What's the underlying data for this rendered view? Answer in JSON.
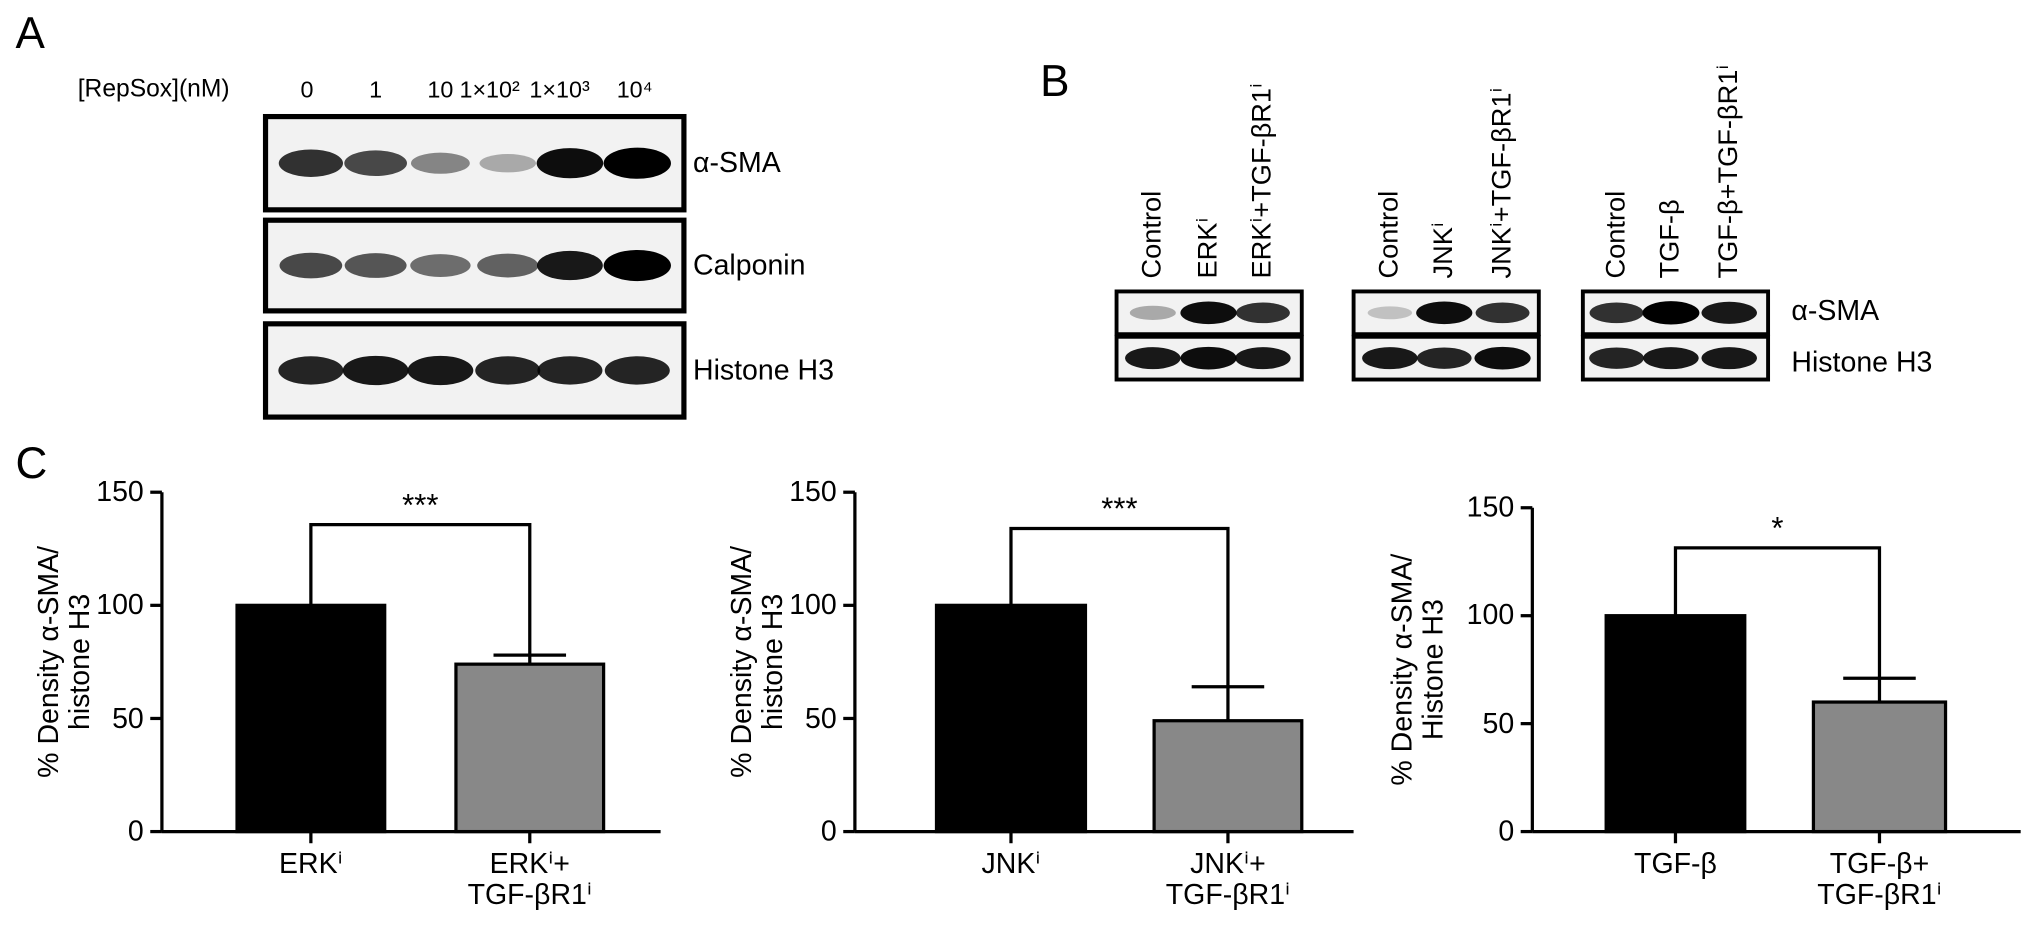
{
  "panels": {
    "a": "A",
    "b": "B",
    "c": "C"
  },
  "blot_a": {
    "header": "[RepSox](nM)",
    "lanes": [
      "0",
      "1",
      "10",
      "1×10²",
      "1×10³",
      "10⁴"
    ],
    "rows": [
      "α-SMA",
      "Calponin",
      "Histone H3"
    ]
  },
  "blot_b": {
    "groups": [
      {
        "lanes": [
          "Control",
          "ERKⁱ",
          "ERKⁱ+TGF-βR1ⁱ"
        ]
      },
      {
        "lanes": [
          "Control",
          "JNKⁱ",
          "JNKⁱ+TGF-βR1ⁱ"
        ]
      },
      {
        "lanes": [
          "Control",
          "TGF-β",
          "TGF-β+TGF-βR1ⁱ"
        ]
      }
    ],
    "rows": [
      "α-SMA",
      "Histone H3"
    ]
  },
  "chart_data": [
    {
      "type": "bar",
      "ylabel": "% Density α-SMA/\nhistone H3",
      "categories": [
        "ERKⁱ",
        "ERKⁱ+\nTGF-βR1ⁱ"
      ],
      "values": [
        100,
        74
      ],
      "errors": [
        null,
        4
      ],
      "colors": [
        "#000000",
        "#888888"
      ],
      "ylim": [
        0,
        150
      ],
      "yticks": [
        0,
        50,
        100,
        150
      ],
      "annotation": "***"
    },
    {
      "type": "bar",
      "ylabel": "% Density α-SMA/\nhistone H3",
      "categories": [
        "JNKⁱ",
        "JNKⁱ+\nTGF-βR1ⁱ"
      ],
      "values": [
        100,
        49
      ],
      "errors": [
        null,
        15
      ],
      "colors": [
        "#000000",
        "#888888"
      ],
      "ylim": [
        0,
        150
      ],
      "yticks": [
        0,
        50,
        100,
        150
      ],
      "annotation": "***"
    },
    {
      "type": "bar",
      "ylabel": "% Density α-SMA/\nHistone H3",
      "categories": [
        "TGF-β",
        "TGF-β+\nTGF-βR1ⁱ"
      ],
      "values": [
        100,
        60
      ],
      "errors": [
        null,
        11
      ],
      "colors": [
        "#000000",
        "#888888"
      ],
      "ylim": [
        0,
        150
      ],
      "yticks": [
        0,
        50,
        100,
        150
      ],
      "annotation": "*"
    }
  ]
}
